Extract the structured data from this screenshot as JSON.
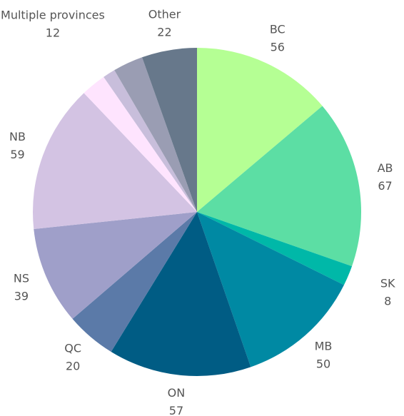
{
  "chart_data": {
    "type": "pie",
    "categories": [
      "BC",
      "AB",
      "SK",
      "MB",
      "ON",
      "QC",
      "NS",
      "NB",
      null,
      null,
      "Multiple provinces",
      "Other"
    ],
    "values": [
      56,
      67,
      8,
      50,
      57,
      20,
      39,
      59,
      10,
      5,
      12,
      22
    ],
    "colors": [
      "#b5ff94",
      "#5cdea4",
      "#00b8a8",
      "#0089a3",
      "#005c84",
      "#5b7aa8",
      "#9f9fc9",
      "#d3c3e3",
      "#fee4fe",
      "#c8bedb",
      "#9a9db3",
      "#67788b"
    ]
  }
}
